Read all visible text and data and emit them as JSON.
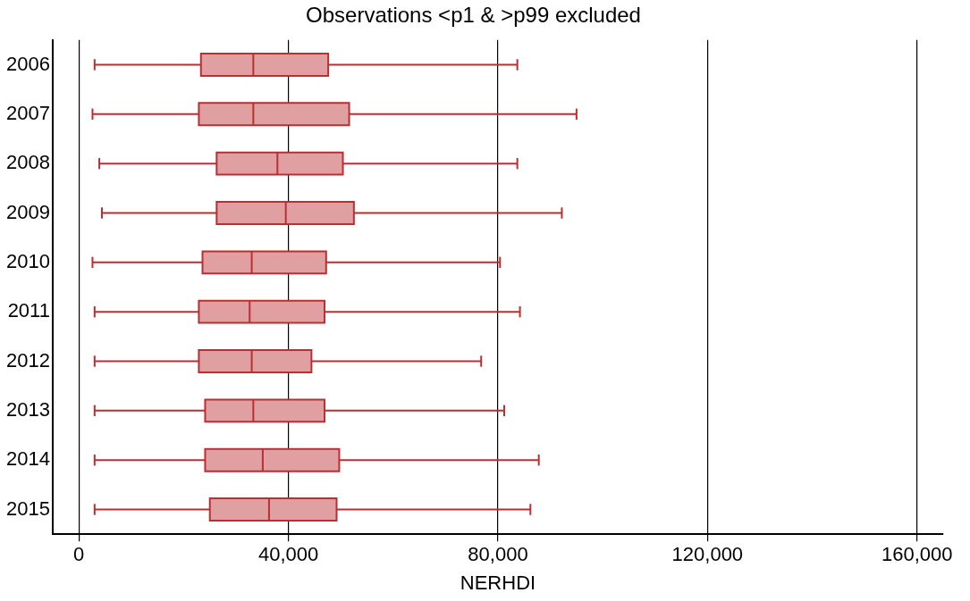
{
  "chart_data": {
    "type": "box",
    "orientation": "horizontal",
    "title": "Observations <p1 & >p99 excluded",
    "xlabel": "NERHDI",
    "categories": [
      "2006",
      "2007",
      "2008",
      "2009",
      "2010",
      "2011",
      "2012",
      "2013",
      "2014",
      "2015"
    ],
    "color": "#e0a0a2",
    "boxes": [
      {
        "low": 3000,
        "q1": 23300,
        "median": 33300,
        "q3": 47600,
        "high": 83700
      },
      {
        "low": 2600,
        "q1": 22900,
        "median": 33300,
        "q3": 51600,
        "high": 95000
      },
      {
        "low": 3900,
        "q1": 26300,
        "median": 37900,
        "q3": 50400,
        "high": 83700
      },
      {
        "low": 4400,
        "q1": 26300,
        "median": 39500,
        "q3": 52500,
        "high": 92200
      },
      {
        "low": 2600,
        "q1": 23600,
        "median": 33000,
        "q3": 47200,
        "high": 80400
      },
      {
        "low": 3000,
        "q1": 22900,
        "median": 32600,
        "q3": 46900,
        "high": 84200
      },
      {
        "low": 3000,
        "q1": 22900,
        "median": 33000,
        "q3": 44400,
        "high": 76800
      },
      {
        "low": 3000,
        "q1": 24100,
        "median": 33300,
        "q3": 46900,
        "high": 81200
      },
      {
        "low": 3000,
        "q1": 24100,
        "median": 35100,
        "q3": 49700,
        "high": 87800
      },
      {
        "low": 3000,
        "q1": 25000,
        "median": 36300,
        "q3": 49200,
        "high": 86200
      }
    ],
    "xlim": [
      -5000,
      165000
    ],
    "xticks": [
      {
        "value": 0,
        "label": "0"
      },
      {
        "value": 40000,
        "label": "40,000"
      },
      {
        "value": 80000,
        "label": "80,000"
      },
      {
        "value": 120000,
        "label": "120,000"
      },
      {
        "value": 160000,
        "label": "160,000"
      }
    ],
    "grid": "x",
    "legend": false
  }
}
